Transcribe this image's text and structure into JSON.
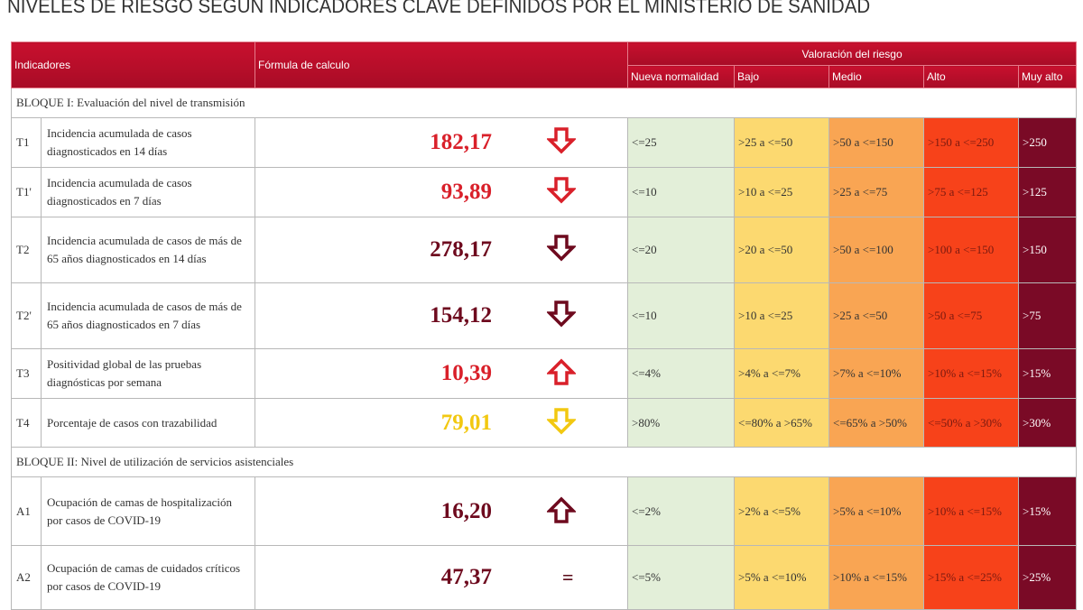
{
  "title": "NIVELES DE RIESGO SEGÚN INDICADORES CLAVE DEFINIDOS POR EL MINISTERIO DE SANIDAD",
  "header": {
    "indicadores": "Indicadores",
    "formula": "Fórmula de calculo",
    "valoracion": "Valoración del riesgo",
    "levels": [
      "Nueva normalidad",
      "Bajo",
      "Medio",
      "Alto",
      "Muy alto"
    ]
  },
  "colors": {
    "header": "#c8102e",
    "nueva_normalidad": "#e3efd9",
    "bajo": "#fcd970",
    "medio": "#f9a553",
    "alto": "#f7421a",
    "muy_alto": "#7a0a26"
  },
  "bloque1": "BLOQUE I: Evaluación del nivel de transmisión",
  "bloque2": "BLOQUE II: Nivel de utilización de servicios asistenciales",
  "rows": [
    {
      "code": "T1",
      "name": "Incidencia acumulada de casos diagnosticados en 14 días",
      "value": "182,17",
      "value_color": "#d9202a",
      "trend": "down",
      "levels": [
        "<=25",
        ">25 a <=50",
        ">50 a <=150",
        ">150 a <=250",
        ">250"
      ]
    },
    {
      "code": "T1'",
      "name": "Incidencia acumulada de casos diagnosticados en 7 días",
      "value": "93,89",
      "value_color": "#d9202a",
      "trend": "down",
      "levels": [
        "<=10",
        ">10 a <=25",
        ">25 a <=75",
        ">75 a <=125",
        ">125"
      ]
    },
    {
      "code": "T2",
      "name": "Incidencia acumulada de casos de más de 65 años diagnosticados en 14 días",
      "value": "278,17",
      "value_color": "#6e0a1e",
      "trend": "down",
      "levels": [
        "<=20",
        ">20 a <=50",
        ">50 a <=100",
        ">100 a <=150",
        ">150"
      ]
    },
    {
      "code": "T2'",
      "name": "Incidencia acumulada de casos de más de 65 años diagnosticados en 7 días",
      "value": "154,12",
      "value_color": "#6e0a1e",
      "trend": "down",
      "levels": [
        "<=10",
        ">10 a <=25",
        ">25 a <=50",
        ">50 a <=75",
        ">75"
      ]
    },
    {
      "code": "T3",
      "name": "Positividad global de las pruebas diagnósticas por semana",
      "value": "10,39",
      "value_color": "#d9202a",
      "trend": "up",
      "levels": [
        "<=4%",
        ">4% a <=7%",
        ">7% a <=10%",
        ">10% a <=15%",
        ">15%"
      ]
    },
    {
      "code": "T4",
      "name": "Porcentaje de casos con trazabilidad",
      "value": "79,01",
      "value_color": "#f2c811",
      "trend": "down",
      "levels": [
        ">80%",
        "<=80% a >65%",
        "<=65% a >50%",
        "<=50% a >30%",
        ">30%"
      ]
    },
    {
      "code": "A1",
      "name": "Ocupación de camas de hospitalización por casos de COVID-19",
      "value": "16,20",
      "value_color": "#6e0a1e",
      "trend": "up",
      "levels": [
        "<=2%",
        ">2% a <=5%",
        ">5% a <=10%",
        ">10% a <=15%",
        ">15%"
      ]
    },
    {
      "code": "A2",
      "name": "Ocupación de camas de cuidados críticos por casos de COVID-19",
      "value": "47,37",
      "value_color": "#6e0a1e",
      "trend": "equal",
      "trend_symbol": "=",
      "levels": [
        "<=5%",
        ">5% a <=10%",
        ">10% a <=15%",
        ">15% a <=25%",
        ">25%"
      ]
    }
  ]
}
